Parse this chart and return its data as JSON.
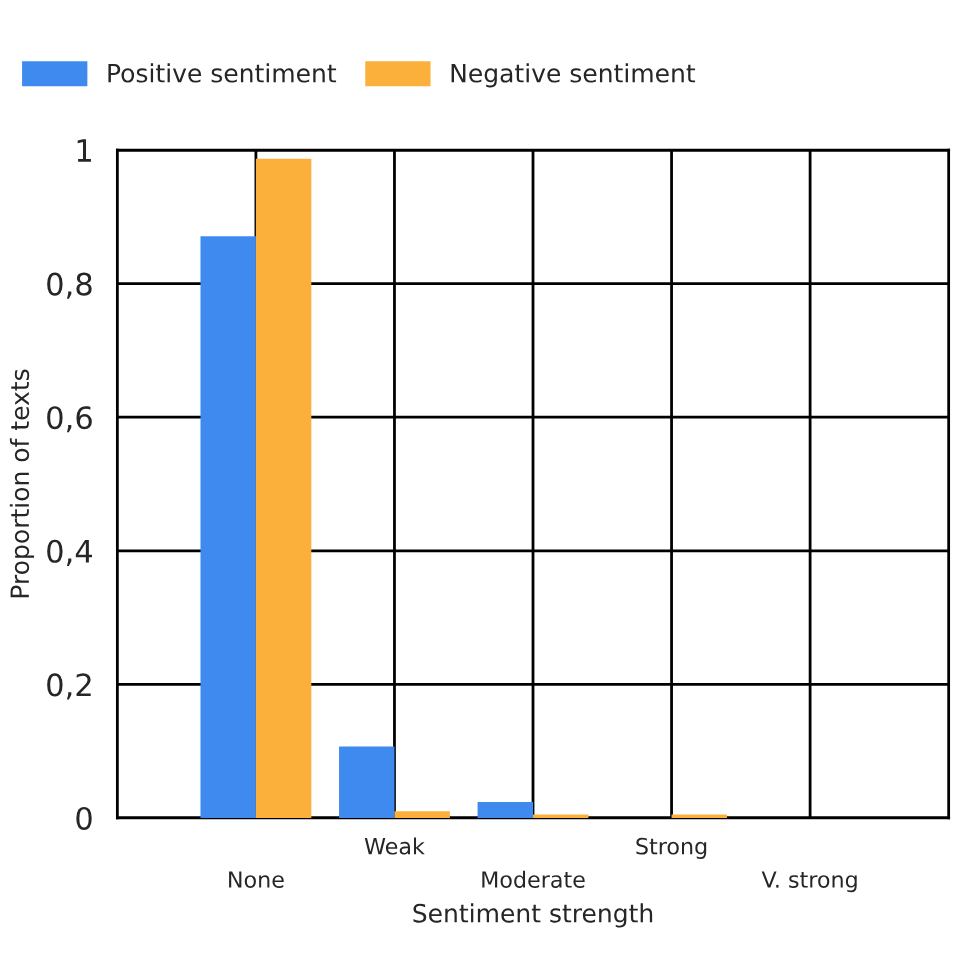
{
  "chart_data": {
    "type": "bar",
    "xlabel": "Sentiment strength",
    "ylabel": "Proportion of texts",
    "categories": [
      "None",
      "Weak",
      "Moderate",
      "Strong",
      "V. strong"
    ],
    "series": [
      {
        "name": "Positive sentiment",
        "color": "#3e8aee",
        "values": [
          0.871,
          0.107,
          0.024,
          0,
          0
        ]
      },
      {
        "name": "Negative sentiment",
        "color": "#fbb03b",
        "values": [
          0.987,
          0.01,
          0.005,
          0.005,
          0
        ]
      }
    ],
    "ylim": [
      0,
      1
    ],
    "yticks": [
      0,
      {
        "value": 0.2,
        "label": "0,2"
      },
      {
        "value": 0.4,
        "label": "0,4"
      },
      {
        "value": 0.6,
        "label": "0,6"
      },
      {
        "value": 0.8,
        "label": "0,8"
      },
      1
    ],
    "grid": true,
    "legend": "top left"
  }
}
